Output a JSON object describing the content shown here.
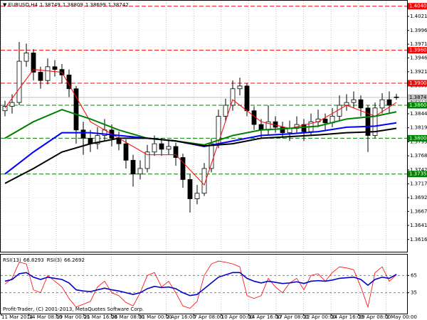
{
  "chart_data": [
    {
      "type": "candlestick",
      "title": "▼ EURUSD,H4",
      "header_values": [
        1.38749,
        1.38809,
        1.38699,
        1.38742
      ],
      "open": [
        1.385,
        1.3858,
        1.3865,
        1.394,
        1.3955,
        1.392,
        1.3905,
        1.393,
        1.3925,
        1.3915,
        1.389,
        1.3815,
        1.38,
        1.379,
        1.3805,
        1.3815,
        1.38,
        1.379,
        1.376,
        1.3735,
        1.3745,
        1.3775,
        1.379,
        1.378,
        1.3785,
        1.3765,
        1.3725,
        1.369,
        1.37,
        1.3745,
        1.379,
        1.384,
        1.386,
        1.389,
        1.3895,
        1.385,
        1.3825,
        1.3815,
        1.383,
        1.382,
        1.381,
        1.3818,
        1.3825,
        1.3812,
        1.383,
        1.3835,
        1.3828,
        1.384,
        1.386,
        1.3865,
        1.387,
        1.3855,
        1.3805,
        1.3855,
        1.387,
        1.38749
      ],
      "high": [
        1.3868,
        1.388,
        1.3975,
        1.3972,
        1.3962,
        1.393,
        1.3945,
        1.3942,
        1.3935,
        1.3925,
        1.3895,
        1.383,
        1.3815,
        1.382,
        1.3835,
        1.3825,
        1.3812,
        1.3798,
        1.377,
        1.376,
        1.3788,
        1.3805,
        1.38,
        1.3798,
        1.3792,
        1.3772,
        1.3735,
        1.3715,
        1.3755,
        1.38,
        1.3852,
        1.3872,
        1.3905,
        1.391,
        1.39,
        1.3858,
        1.3835,
        1.386,
        1.384,
        1.383,
        1.3832,
        1.384,
        1.3835,
        1.3845,
        1.3852,
        1.3845,
        1.3855,
        1.3878,
        1.388,
        1.3885,
        1.3878,
        1.386,
        1.3865,
        1.3882,
        1.3885,
        1.38809
      ],
      "low": [
        1.384,
        1.3845,
        1.386,
        1.393,
        1.3905,
        1.389,
        1.3898,
        1.3912,
        1.39,
        1.3875,
        1.379,
        1.377,
        1.3775,
        1.378,
        1.3795,
        1.3785,
        1.3778,
        1.3745,
        1.3712,
        1.3725,
        1.3738,
        1.3768,
        1.3768,
        1.377,
        1.375,
        1.371,
        1.3665,
        1.368,
        1.3695,
        1.3738,
        1.3782,
        1.383,
        1.385,
        1.3878,
        1.384,
        1.3815,
        1.38,
        1.3805,
        1.381,
        1.38,
        1.3795,
        1.381,
        1.3795,
        1.3805,
        1.382,
        1.3815,
        1.382,
        1.3832,
        1.385,
        1.3855,
        1.384,
        1.3775,
        1.38,
        1.3845,
        1.3845,
        1.38699
      ],
      "close": [
        1.3858,
        1.3865,
        1.394,
        1.3955,
        1.392,
        1.3905,
        1.393,
        1.3925,
        1.3915,
        1.389,
        1.3815,
        1.38,
        1.379,
        1.3805,
        1.3815,
        1.38,
        1.379,
        1.376,
        1.3735,
        1.3745,
        1.3775,
        1.379,
        1.378,
        1.3785,
        1.3765,
        1.3725,
        1.369,
        1.37,
        1.3745,
        1.379,
        1.384,
        1.386,
        1.389,
        1.3895,
        1.385,
        1.3825,
        1.3815,
        1.383,
        1.382,
        1.381,
        1.3818,
        1.3825,
        1.3812,
        1.383,
        1.3835,
        1.3828,
        1.384,
        1.386,
        1.3865,
        1.387,
        1.3855,
        1.3805,
        1.3855,
        1.387,
        1.386,
        1.38742
      ],
      "up_color": "#ffffff",
      "down_color": "#000000",
      "ylim": [
        1.3595,
        1.405
      ],
      "yticks": [
        1.40215,
        {
          "value": 1.3996,
          "label": "1.39960"
        },
        {
          "value": 1.3971,
          "label": "1.39710"
        },
        {
          "value": 1.3946,
          "label": "1.39460"
        },
        {
          "value": 1.3921,
          "label": "1.39210"
        },
        1.38955,
        {
          "value": 1.387,
          "label": "1.38700"
        },
        1.38445,
        {
          "value": 1.3819,
          "label": "1.38190"
        },
        1.37935,
        {
          "value": 1.3768,
          "label": "1.37680"
        },
        1.37425,
        {
          "value": 1.3717,
          "label": "1.37170"
        },
        {
          "value": 1.3692,
          "label": "1.36920"
        },
        {
          "value": 1.3667,
          "label": "1.36670"
        },
        1.36415,
        {
          "value": 1.3616,
          "label": "1.36160"
        }
      ],
      "grid": true,
      "levels": [
        {
          "value": 1.404,
          "label": "1.40400",
          "color": "#ff0000"
        },
        {
          "value": 1.396,
          "label": "1.39600",
          "color": "#ff0000"
        },
        {
          "value": 1.39,
          "label": "1.39000",
          "color": "#ff0000"
        },
        {
          "value": 1.386,
          "label": "1.38600",
          "color": "#008000"
        },
        {
          "value": 1.38,
          "label": "1.38000",
          "color": "#008000"
        },
        {
          "value": 1.3735,
          "label": "1.37350",
          "color": "#008000"
        }
      ],
      "last_price": {
        "value": 1.38742,
        "label": "1.38742",
        "color": "#c0c0c0"
      },
      "moving_averages": [
        {
          "color": "#ff0000",
          "x": [
            0,
            4,
            8,
            12,
            16,
            20,
            24,
            28,
            32,
            36,
            40,
            44,
            48,
            52,
            55
          ],
          "values": [
            1.3855,
            1.3925,
            1.392,
            1.383,
            1.38,
            1.377,
            1.377,
            1.3715,
            1.387,
            1.383,
            1.3818,
            1.383,
            1.386,
            1.384,
            1.3865
          ]
        },
        {
          "color": "#008000",
          "x": [
            0,
            4,
            8,
            12,
            16,
            20,
            24,
            28,
            32,
            36,
            40,
            44,
            48,
            52,
            55
          ],
          "values": [
            1.38,
            1.383,
            1.3852,
            1.3835,
            1.3815,
            1.38,
            1.3795,
            1.3788,
            1.3805,
            1.3815,
            1.3818,
            1.3822,
            1.3835,
            1.384,
            1.3848
          ]
        },
        {
          "color": "#0000ff",
          "x": [
            0,
            4,
            8,
            12,
            16,
            20,
            24,
            28,
            32,
            36,
            40,
            44,
            48,
            52,
            55
          ],
          "values": [
            1.3735,
            1.3775,
            1.381,
            1.381,
            1.3805,
            1.38,
            1.3795,
            1.3785,
            1.3795,
            1.3805,
            1.3808,
            1.3812,
            1.382,
            1.3822,
            1.3828
          ]
        },
        {
          "color": "#000000",
          "x": [
            0,
            4,
            8,
            12,
            16,
            20,
            24,
            28,
            32,
            36,
            40,
            44,
            48,
            52,
            55
          ],
          "values": [
            1.3718,
            1.3745,
            1.3775,
            1.379,
            1.38,
            1.38,
            1.3795,
            1.3786,
            1.379,
            1.38,
            1.3803,
            1.3806,
            1.381,
            1.3812,
            1.3818
          ]
        }
      ],
      "x_labels": [
        "11 Mar 2014",
        "14 Mar 08:00",
        "19 Mar 00:00",
        "21 Mar 16:00",
        "26 Mar 08:00",
        "31 Mar 00:00",
        "2 Apr 16:00",
        "7 Apr 08:00",
        "10 Apr 00:00",
        "14 Apr 16:00",
        "17 Apr 08:00",
        "22 Apr 00:00",
        "24 Apr 16:00",
        "29 Apr 08:00",
        "2 May 00:00"
      ]
    },
    {
      "type": "line",
      "series": [
        {
          "name": "RSI(13)",
          "color": "#0000cc",
          "values": [
            55,
            58,
            68,
            70,
            62,
            58,
            62,
            60,
            58,
            52,
            40,
            38,
            37,
            40,
            43,
            40,
            38,
            35,
            32,
            35,
            42,
            46,
            44,
            45,
            42,
            35,
            30,
            32,
            42,
            52,
            62,
            66,
            70,
            70,
            60,
            55,
            52,
            55,
            53,
            51,
            52,
            54,
            51,
            55,
            56,
            55,
            57,
            60,
            61,
            62,
            58,
            48,
            58,
            62,
            60,
            66.8293
          ]
        },
        {
          "name": "RSI(3)",
          "color": "#ff0000",
          "values": [
            50,
            60,
            88,
            85,
            40,
            35,
            65,
            55,
            45,
            25,
            10,
            15,
            20,
            45,
            55,
            35,
            30,
            18,
            12,
            35,
            65,
            70,
            45,
            55,
            35,
            12,
            8,
            20,
            65,
            85,
            90,
            88,
            85,
            80,
            30,
            25,
            30,
            60,
            45,
            35,
            52,
            60,
            40,
            65,
            68,
            55,
            70,
            80,
            78,
            75,
            45,
            10,
            70,
            80,
            55,
            66.2692
          ]
        }
      ],
      "ylim": [
        0,
        100
      ],
      "yticks": [
        65,
        35
      ],
      "grid": true,
      "annotation": "Profit-Trader, (C) 2001-2013, MetaQuotes Software Corp."
    }
  ]
}
